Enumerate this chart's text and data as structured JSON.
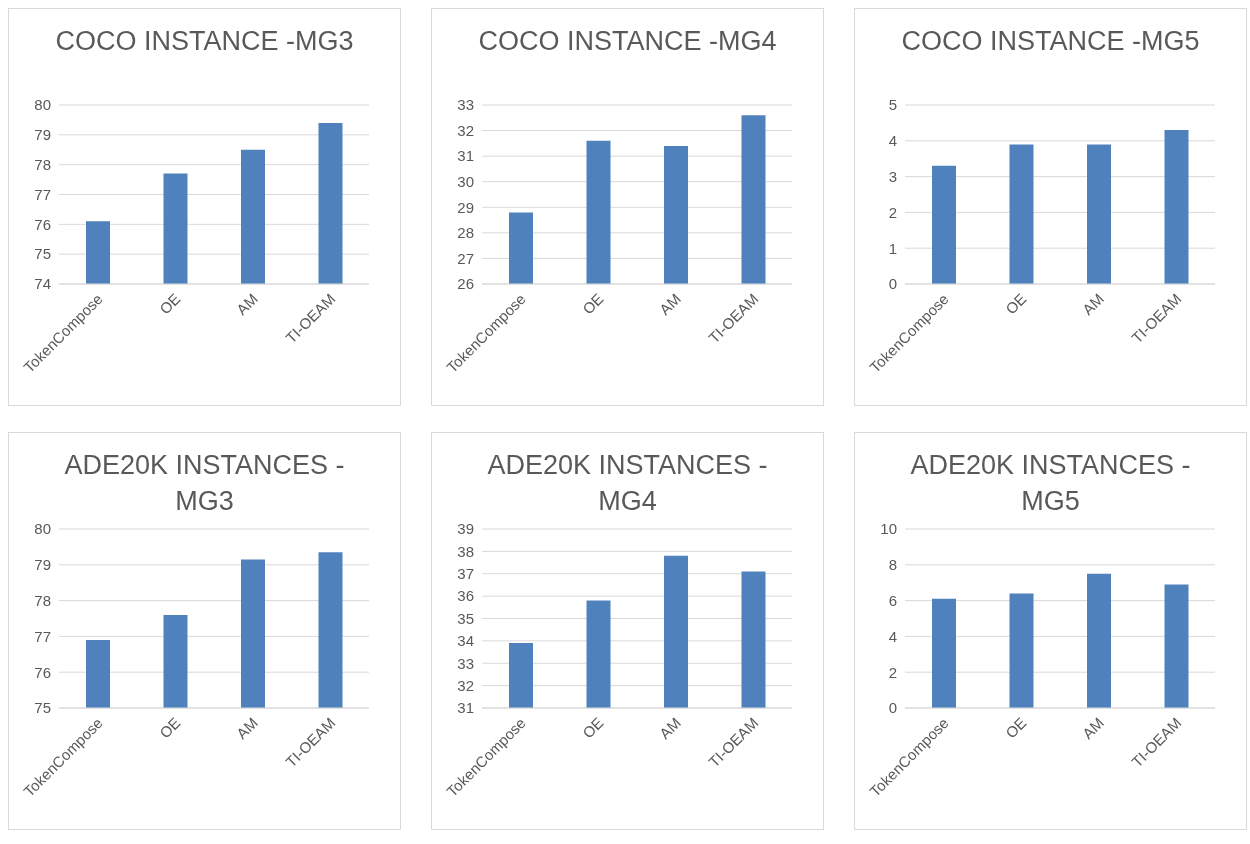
{
  "chart_data": [
    {
      "type": "bar",
      "title": "COCO INSTANCE -MG3",
      "categories": [
        "TokenCompose",
        "OE",
        "AM",
        "TI-OEAM"
      ],
      "values": [
        76.1,
        77.7,
        78.5,
        79.4
      ],
      "color": "#4f81bd",
      "ylim": [
        74,
        80
      ],
      "yticks": [
        74,
        75,
        76,
        77,
        78,
        79,
        80
      ],
      "grid": "y"
    },
    {
      "type": "bar",
      "title": "COCO INSTANCE -MG4",
      "categories": [
        "TokenCompose",
        "OE",
        "AM",
        "TI-OEAM"
      ],
      "values": [
        28.8,
        31.6,
        31.4,
        32.6
      ],
      "color": "#4f81bd",
      "ylim": [
        26,
        33
      ],
      "yticks": [
        26,
        27,
        28,
        29,
        30,
        31,
        32,
        33
      ],
      "grid": "y"
    },
    {
      "type": "bar",
      "title": "COCO INSTANCE -MG5",
      "categories": [
        "TokenCompose",
        "OE",
        "AM",
        "TI-OEAM"
      ],
      "values": [
        3.3,
        3.9,
        3.9,
        4.3
      ],
      "color": "#4f81bd",
      "ylim": [
        0,
        5
      ],
      "yticks": [
        0,
        1,
        2,
        3,
        4,
        5
      ],
      "grid": "y"
    },
    {
      "type": "bar",
      "title": "ADE20K INSTANCES -MG3",
      "categories": [
        "TokenCompose",
        "OE",
        "AM",
        "TI-OEAM"
      ],
      "values": [
        76.9,
        77.6,
        79.15,
        79.35
      ],
      "color": "#4f81bd",
      "ylim": [
        75,
        80
      ],
      "yticks": [
        75,
        76,
        77,
        78,
        79,
        80
      ],
      "grid": "y"
    },
    {
      "type": "bar",
      "title": "ADE20K INSTANCES -MG4",
      "categories": [
        "TokenCompose",
        "OE",
        "AM",
        "TI-OEAM"
      ],
      "values": [
        33.9,
        35.8,
        37.8,
        37.1
      ],
      "color": "#4f81bd",
      "ylim": [
        31,
        39
      ],
      "yticks": [
        31,
        32,
        33,
        34,
        35,
        36,
        37,
        38,
        39
      ],
      "grid": "y"
    },
    {
      "type": "bar",
      "title": "ADE20K INSTANCES -MG5",
      "categories": [
        "TokenCompose",
        "OE",
        "AM",
        "TI-OEAM"
      ],
      "values": [
        6.1,
        6.4,
        7.5,
        6.9
      ],
      "color": "#4f81bd",
      "ylim": [
        0,
        10
      ],
      "yticks": [
        0,
        2,
        4,
        6,
        8,
        10
      ],
      "grid": "y"
    }
  ]
}
